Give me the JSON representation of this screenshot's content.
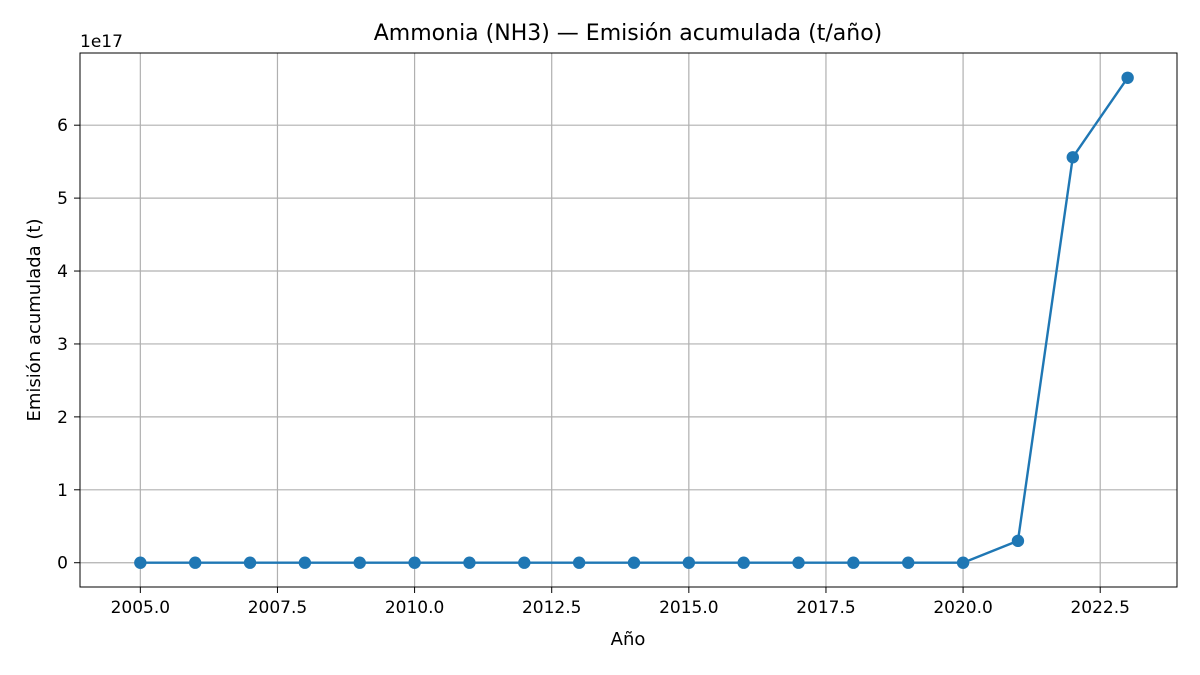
{
  "chart_data": {
    "type": "line",
    "title": "Ammonia (NH3) — Emisión acumulada (t/año)",
    "xlabel": "Año",
    "ylabel": "Emisión acumulada (t)",
    "y_offset_label": "1e17",
    "y_scale_factor": 1e+17,
    "xlim": [
      2003.9,
      2023.9
    ],
    "ylim": [
      -0.333,
      6.99
    ],
    "x_ticks": [
      2005,
      2007.5,
      2010,
      2012.5,
      2015,
      2017.5,
      2020,
      2022.5
    ],
    "x_tick_labels": [
      "2005.0",
      "2007.5",
      "2010.0",
      "2012.5",
      "2015.0",
      "2017.5",
      "2020.0",
      "2022.5"
    ],
    "y_ticks": [
      0,
      1,
      2,
      3,
      4,
      5,
      6
    ],
    "y_tick_labels": [
      "0",
      "1",
      "2",
      "3",
      "4",
      "5",
      "6"
    ],
    "grid": true,
    "series": [
      {
        "x": [
          2005,
          2006,
          2007,
          2008,
          2009,
          2010,
          2011,
          2012,
          2013,
          2014,
          2015,
          2016,
          2017,
          2018,
          2019,
          2020,
          2021,
          2022,
          2023
        ],
        "y": [
          0,
          0,
          0,
          0,
          0,
          0,
          0,
          0,
          0,
          0,
          0,
          0,
          0,
          0,
          0,
          0,
          0.3,
          5.56,
          6.65
        ],
        "color": "#1f77b4",
        "marker": "circle"
      }
    ]
  }
}
